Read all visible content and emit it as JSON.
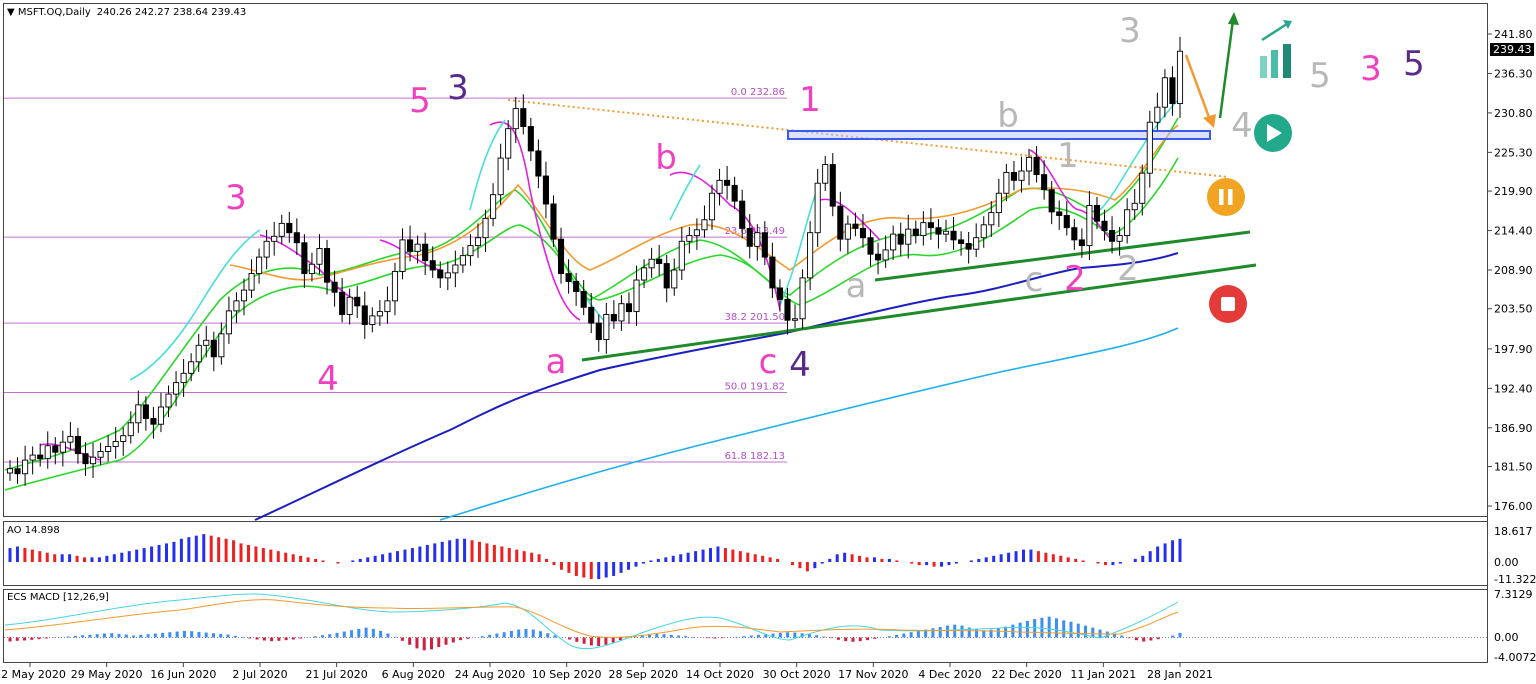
{
  "header": {
    "symbol": "MSFT.OQ,Daily",
    "ohlc": "240.26 242.27 238.64 239.43"
  },
  "colors": {
    "wave_pink": "#f040c0",
    "wave_purple": "#5a2a8a",
    "wave_grey": "#b8b8b8",
    "ma_blue": "#1a1fbf",
    "ma_lightblue": "#20b0f0",
    "ma_green": "#28d828",
    "ma_orange": "#f29a2e",
    "ma_magenta": "#e020e0",
    "ma_cyan": "#46e0d8",
    "trend_green": "#1f8a2a",
    "fib_line": "#c070d0",
    "resistance_box": "#3b5bf0",
    "ao_up": "#2430ee",
    "ao_down": "#ee2020",
    "macd_up": "#3a8ff0",
    "macd_down": "#d02040"
  },
  "icons": {
    "play": "play-icon",
    "pause": "pause-icon",
    "stop": "stop-icon",
    "bars": "bar-chart-icon"
  },
  "chart_data": [
    {
      "type": "candlestick",
      "title": "MSFT.OQ,Daily",
      "price_axis": {
        "ticks": [
          "241.80",
          "236.30",
          "230.80",
          "225.30",
          "219.90",
          "214.40",
          "208.90",
          "203.50",
          "197.90",
          "192.40",
          "186.90",
          "181.50",
          "176.00"
        ],
        "last": "239.43"
      },
      "x_ticks": [
        "12 May 2020",
        "29 May 2020",
        "16 Jun 2020",
        "2 Jul 2020",
        "21 Jul 2020",
        "6 Aug 2020",
        "24 Aug 2020",
        "10 Sep 2020",
        "28 Sep 2020",
        "14 Oct 2020",
        "30 Oct 2020",
        "17 Nov 2020",
        "4 Dec 2020",
        "22 Dec 2020",
        "11 Jan 2021",
        "28 Jan 2021"
      ],
      "fib_levels": [
        {
          "label": "0.0 232.86",
          "value": 232.86
        },
        {
          "label": "23.6 213.49",
          "value": 213.49
        },
        {
          "label": "38.2 201.50",
          "value": 201.5
        },
        {
          "label": "50.0 191.82",
          "value": 191.82
        },
        {
          "label": "61.8 182.13",
          "value": 182.13
        }
      ],
      "wave_labels": [
        {
          "text": "3",
          "color": "pink"
        },
        {
          "text": "4",
          "color": "pink"
        },
        {
          "text": "5",
          "color": "pink"
        },
        {
          "text": "3",
          "color": "purple"
        },
        {
          "text": "a",
          "color": "pink"
        },
        {
          "text": "b",
          "color": "pink"
        },
        {
          "text": "c",
          "color": "pink"
        },
        {
          "text": "4",
          "color": "purple"
        },
        {
          "text": "1",
          "color": "pink"
        },
        {
          "text": "a",
          "color": "grey"
        },
        {
          "text": "b",
          "color": "grey"
        },
        {
          "text": "c",
          "color": "grey"
        },
        {
          "text": "1",
          "color": "grey"
        },
        {
          "text": "2",
          "color": "pink"
        },
        {
          "text": "2",
          "color": "grey"
        },
        {
          "text": "3",
          "color": "grey"
        },
        {
          "text": "4",
          "color": "grey"
        },
        {
          "text": "5",
          "color": "grey"
        },
        {
          "text": "3",
          "color": "pink"
        },
        {
          "text": "5",
          "color": "purple"
        }
      ],
      "closes": [
        181.2,
        180.5,
        182.4,
        183.1,
        182.6,
        184.4,
        183.5,
        184.9,
        185.7,
        183.3,
        181.9,
        182.8,
        183.6,
        184.3,
        185.0,
        185.8,
        187.6,
        190.1,
        188.2,
        187.4,
        189.8,
        191.6,
        193.2,
        194.5,
        196.1,
        198.4,
        199.1,
        196.8,
        200.0,
        203.2,
        204.6,
        206.1,
        208.4,
        210.7,
        212.9,
        213.6,
        215.4,
        214.1,
        212.7,
        208.4,
        209.7,
        211.9,
        207.2,
        205.8,
        202.7,
        205.1,
        203.9,
        201.3,
        202.5,
        203.1,
        204.6,
        208.7,
        213.1,
        211.5,
        212.5,
        210.2,
        208.9,
        207.8,
        208.5,
        209.6,
        210.9,
        212.3,
        213.4,
        216.1,
        219.4,
        224.5,
        228.6,
        231.4,
        228.9,
        225.5,
        222.0,
        218.1,
        213.2,
        208.4,
        207.3,
        205.9,
        203.7,
        201.5,
        199.2,
        202.7,
        201.8,
        204.2,
        203.1,
        207.5,
        209.2,
        210.4,
        209.8,
        206.4,
        208.9,
        212.9,
        213.7,
        214.5,
        215.9,
        219.6,
        221.4,
        220.7,
        218.5,
        214.7,
        212.2,
        214.1,
        210.7,
        206.4,
        204.8,
        201.9,
        202.1,
        207.8,
        214.1,
        221.0,
        223.6,
        217.8,
        213.2,
        215.3,
        214.7,
        213.4,
        211.1,
        210.3,
        211.7,
        213.9,
        212.5,
        214.6,
        213.7,
        215.5,
        214.8,
        213.9,
        214.3,
        213.1,
        212.6,
        211.8,
        213.4,
        215.2,
        216.9,
        219.6,
        222.5,
        221.4,
        222.7,
        224.6,
        222.2,
        220.1,
        217.0,
        216.5,
        214.8,
        213.1,
        212.3,
        217.9,
        215.7,
        214.4,
        212.9,
        213.7,
        217.3,
        218.2,
        222.4,
        229.5,
        231.6,
        235.7,
        232.1,
        239.4
      ],
      "ao": {
        "value": "14.898",
        "axis_ticks": [
          "18.617",
          "0.00",
          "-11.322"
        ],
        "values": [
          9,
          10,
          9,
          8,
          7,
          6,
          5,
          5,
          5,
          4,
          3,
          3,
          3,
          4,
          5,
          6,
          7,
          8,
          9,
          10,
          11,
          12,
          13,
          15,
          16,
          17,
          18,
          17,
          16,
          15,
          14,
          12,
          11,
          10,
          9,
          8,
          7,
          6,
          5,
          4,
          3,
          2,
          1,
          0,
          -1,
          0,
          1,
          2,
          3,
          4,
          5,
          6,
          7,
          8,
          9,
          10,
          11,
          12,
          13,
          14,
          15,
          15,
          14,
          13,
          12,
          11,
          10,
          9,
          8,
          7,
          6,
          5,
          2,
          -2,
          -5,
          -7,
          -9,
          -10,
          -11,
          -11,
          -10,
          -9,
          -7,
          -5,
          -3,
          -1,
          1,
          2,
          3,
          4,
          5,
          6,
          7,
          8,
          9,
          10,
          9,
          8,
          7,
          6,
          5,
          4,
          3,
          2,
          0,
          -2,
          -4,
          -6,
          -4,
          -1,
          2,
          5,
          6,
          5,
          4,
          3,
          3,
          2,
          2,
          1,
          0,
          -1,
          -2,
          -2,
          -3,
          -3,
          -2,
          -1,
          0,
          1,
          2,
          3,
          4,
          5,
          6,
          7,
          8,
          8,
          7,
          6,
          5,
          4,
          3,
          2,
          1,
          0,
          -1,
          -2,
          -2,
          -1,
          0,
          2,
          4,
          7,
          10,
          12,
          14,
          15
        ]
      },
      "macd": {
        "label": "ECS MACD [12,26,9]",
        "axis_ticks": [
          "7.3129",
          "0.00",
          "-4.0072"
        ],
        "hist": [
          -1.2,
          -1.0,
          -0.9,
          -0.7,
          -0.5,
          -0.3,
          -0.1,
          0.1,
          0.3,
          0.5,
          0.7,
          0.8,
          1.0,
          1.2,
          1.3,
          1.1,
          0.9,
          0.6,
          0.8,
          1.0,
          1.2,
          1.4,
          1.6,
          1.8,
          2.0,
          1.9,
          1.7,
          1.5,
          1.3,
          1.1,
          0.9,
          0.5,
          0.2,
          -0.3,
          -0.6,
          -0.9,
          -1.1,
          -1.0,
          -0.8,
          -0.6,
          -0.3,
          0.1,
          0.4,
          0.7,
          1.0,
          1.4,
          1.8,
          2.2,
          2.6,
          3.0,
          2.6,
          2.0,
          1.2,
          0.2,
          -1.0,
          -2.2,
          -3.3,
          -3.9,
          -3.6,
          -2.9,
          -2.2,
          -1.5,
          -0.8,
          -0.4,
          0.0,
          0.4,
          0.8,
          1.2,
          1.6,
          2.0,
          2.4,
          2.6,
          2.4,
          1.9,
          1.3,
          0.7,
          0.1,
          -0.6,
          -1.3,
          -1.9,
          -2.4,
          -2.6,
          -2.2,
          -1.5,
          -0.8,
          -0.1,
          0.5,
          0.8,
          1.0,
          1.1,
          1.0,
          0.8,
          0.6,
          0.4,
          0.2,
          0.0,
          -0.2,
          -0.3,
          -0.2,
          0.0,
          0.2,
          0.4,
          0.6,
          0.8,
          1.0,
          1.2,
          1.4,
          1.6,
          1.5,
          1.3,
          1.0,
          0.7,
          0.3,
          -0.2,
          -0.7,
          -1.1,
          -1.3,
          -1.1,
          -0.8,
          -0.4,
          0.0,
          0.4,
          0.8,
          1.2,
          1.6,
          2.0,
          2.4,
          2.8,
          3.2,
          3.6,
          3.9,
          3.6,
          3.0,
          2.5,
          2.2,
          2.4,
          2.8,
          3.3,
          3.9,
          4.5,
          5.0,
          5.6,
          6.0,
          6.3,
          5.8,
          5.2,
          4.8,
          4.2,
          3.6,
          3.0,
          2.4,
          1.8,
          1.2,
          0.6,
          -0.2,
          -0.8,
          -1.2,
          -0.9,
          -0.5,
          0.0,
          0.6,
          1.4
        ]
      }
    }
  ]
}
